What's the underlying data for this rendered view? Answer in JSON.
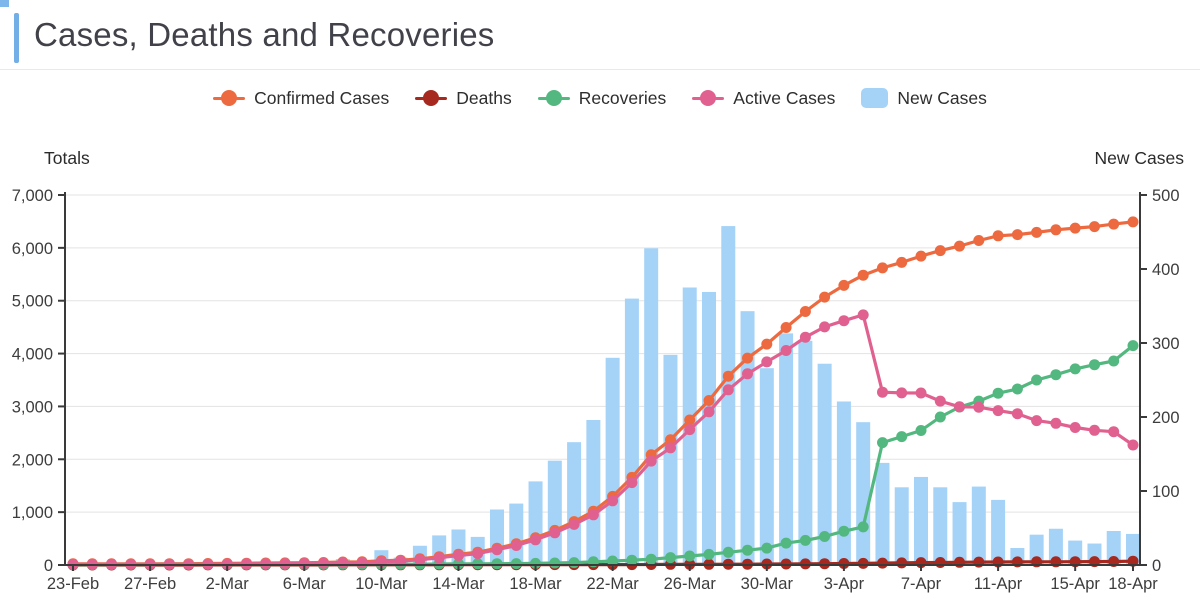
{
  "page": {
    "title": "Cases, Deaths and Recoveries"
  },
  "colors": {
    "accent": "#73aee6",
    "confirmed": "#ed6a40",
    "deaths": "#a6281e",
    "recoveries": "#53b87f",
    "active": "#e0618f",
    "new_cases": "#a5d3f8",
    "grid": "#e3e3e3",
    "axis": "#3a3a3a"
  },
  "legend": [
    {
      "label": "Confirmed Cases",
      "type": "line",
      "color": "#ed6a40"
    },
    {
      "label": "Deaths",
      "type": "line",
      "color": "#a6281e"
    },
    {
      "label": "Recoveries",
      "type": "line",
      "color": "#53b87f"
    },
    {
      "label": "Active Cases",
      "type": "line",
      "color": "#e0618f"
    },
    {
      "label": "New Cases",
      "type": "bar",
      "color": "#a5d3f8"
    }
  ],
  "axes": {
    "left_title": "Totals",
    "right_title": "New Cases",
    "left_max": 7000,
    "right_max": 500,
    "left_tick_labels": [
      "0",
      "1,000",
      "2,000",
      "3,000",
      "4,000",
      "5,000",
      "6,000",
      "7,000"
    ],
    "right_tick_labels": [
      "0",
      "100",
      "200",
      "300",
      "400",
      "500"
    ]
  },
  "chart_data": {
    "type": "combo (line + bar, dual axis)",
    "x": [
      "23-Feb",
      "24-Feb",
      "25-Feb",
      "26-Feb",
      "27-Feb",
      "28-Feb",
      "29-Feb",
      "1-Mar",
      "2-Mar",
      "3-Mar",
      "4-Mar",
      "5-Mar",
      "6-Mar",
      "7-Mar",
      "8-Mar",
      "9-Mar",
      "10-Mar",
      "11-Mar",
      "12-Mar",
      "13-Mar",
      "14-Mar",
      "15-Mar",
      "16-Mar",
      "17-Mar",
      "18-Mar",
      "19-Mar",
      "20-Mar",
      "21-Mar",
      "22-Mar",
      "23-Mar",
      "24-Mar",
      "25-Mar",
      "26-Mar",
      "27-Mar",
      "28-Mar",
      "29-Mar",
      "30-Mar",
      "31-Mar",
      "1-Apr",
      "2-Apr",
      "3-Apr",
      "4-Apr",
      "5-Apr",
      "6-Apr",
      "7-Apr",
      "8-Apr",
      "9-Apr",
      "10-Apr",
      "11-Apr",
      "12-Apr",
      "13-Apr",
      "14-Apr",
      "15-Apr",
      "16-Apr",
      "17-Apr",
      "18-Apr"
    ],
    "x_tick_indices": [
      0,
      4,
      8,
      12,
      16,
      20,
      24,
      28,
      32,
      36,
      40,
      44,
      48,
      52,
      55
    ],
    "line_series": [
      {
        "name": "Confirmed Cases",
        "color": "#ed6a40",
        "axis": "left",
        "values": [
          22,
          22,
          23,
          23,
          23,
          24,
          25,
          28,
          31,
          34,
          37,
          40,
          43,
          48,
          56,
          61,
          81,
          91,
          117,
          157,
          205,
          243,
          318,
          401,
          514,
          655,
          821,
          1017,
          1297,
          1657,
          2085,
          2369,
          2744,
          3113,
          3571,
          3914,
          4180,
          4493,
          4796,
          5068,
          5289,
          5482,
          5620,
          5725,
          5844,
          5949,
          6034,
          6140,
          6228,
          6251,
          6292,
          6341,
          6374,
          6403,
          6449,
          6491
        ]
      },
      {
        "name": "Deaths",
        "color": "#a6281e",
        "axis": "left",
        "values": [
          0,
          0,
          0,
          0,
          0,
          0,
          0,
          1,
          1,
          1,
          2,
          2,
          2,
          2,
          3,
          3,
          3,
          3,
          3,
          3,
          5,
          5,
          5,
          6,
          7,
          7,
          7,
          7,
          8,
          8,
          9,
          13,
          13,
          14,
          16,
          16,
          18,
          19,
          21,
          24,
          28,
          30,
          35,
          40,
          45,
          48,
          51,
          54,
          56,
          59,
          61,
          61,
          63,
          65,
          67,
          71
        ]
      },
      {
        "name": "Recoveries",
        "color": "#53b87f",
        "axis": "left",
        "values": [
          8,
          8,
          9,
          9,
          10,
          11,
          11,
          11,
          11,
          11,
          11,
          11,
          12,
          12,
          13,
          14,
          15,
          15,
          16,
          18,
          20,
          22,
          24,
          26,
          30,
          38,
          46,
          60,
          75,
          90,
          110,
          140,
          170,
          200,
          240,
          280,
          320,
          415,
          465,
          540,
          640,
          720,
          2315,
          2430,
          2545,
          2800,
          2990,
          3100,
          3250,
          3330,
          3500,
          3600,
          3710,
          3790,
          3860,
          4150
        ]
      },
      {
        "name": "Active Cases",
        "color": "#e0618f",
        "axis": "left",
        "values": [
          14,
          14,
          14,
          14,
          13,
          13,
          14,
          16,
          19,
          22,
          24,
          27,
          29,
          34,
          40,
          44,
          63,
          73,
          98,
          136,
          180,
          216,
          289,
          369,
          477,
          610,
          768,
          950,
          1214,
          1559,
          1966,
          2216,
          2561,
          2899,
          3315,
          3618,
          3842,
          4059,
          4310,
          4504,
          4621,
          4732,
          3270,
          3255,
          3254,
          3101,
          2993,
          2986,
          2922,
          2862,
          2731,
          2680,
          2601,
          2548,
          2522,
          2270
        ]
      }
    ],
    "bar_series": {
      "name": "New Cases",
      "color": "#a5d3f8",
      "axis": "right",
      "values": [
        0,
        0,
        1,
        0,
        0,
        1,
        1,
        3,
        3,
        3,
        3,
        3,
        3,
        5,
        8,
        5,
        20,
        10,
        26,
        40,
        48,
        38,
        75,
        83,
        113,
        141,
        166,
        196,
        280,
        360,
        428,
        284,
        375,
        369,
        458,
        343,
        266,
        313,
        303,
        272,
        221,
        193,
        138,
        105,
        119,
        105,
        85,
        106,
        88,
        23,
        41,
        49,
        33,
        29,
        46,
        42
      ]
    },
    "layout": {
      "left_axis_range": [
        0,
        7000
      ],
      "right_axis_range": [
        0,
        500
      ],
      "grid": "horizontal",
      "legend_position": "top-center"
    }
  }
}
